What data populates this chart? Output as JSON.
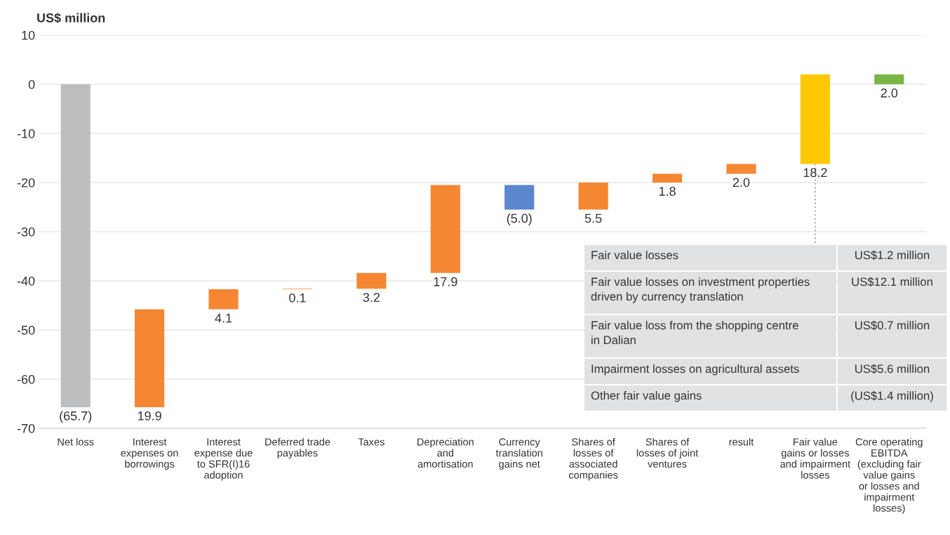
{
  "chart_data": {
    "type": "bar",
    "ylabel": "US$ million",
    "categories": [
      "Net loss",
      "Interest\nexpenses on\nborrowings",
      "Interest\nexpense due\nto SFR(I)16\nadoption",
      "Deferred trade\npayables",
      "Taxes",
      "Depreciation\nand\namortisation",
      "Currency\ntranslation\ngains net",
      "Shares of\nlosses of\nassociated\ncompanies",
      "Shares of\nlosses of joint\nventures",
      "result",
      "Fair value\ngains or losses\nand impairment\nlosses",
      "Core operating\nEBITDA\n(excluding fair\nvalue gains\nor losses and\nimpairment\nlosses)"
    ],
    "base": [
      0,
      -65.7,
      -45.8,
      -41.7,
      -41.6,
      -38.4,
      -20.5,
      -25.5,
      -20.0,
      -18.2,
      -16.2,
      0
    ],
    "values": [
      -65.7,
      19.9,
      4.1,
      0.1,
      3.2,
      17.9,
      -5.0,
      5.5,
      1.8,
      2.0,
      18.2,
      2.0
    ],
    "value_labels": [
      "(65.7)",
      "19.9",
      "4.1",
      "0.1",
      "3.2",
      "17.9",
      "(5.0)",
      "5.5",
      "1.8",
      "2.0",
      "18.2",
      "2.0"
    ],
    "colors": [
      "#bcbec0",
      "#f58733",
      "#f58733",
      "#f58733",
      "#f58733",
      "#f58733",
      "#5a87ce",
      "#f58733",
      "#f58733",
      "#f58733",
      "#ffc800",
      "#7ab648"
    ],
    "ylim": [
      -70,
      10
    ],
    "yticks": [
      -70,
      -60,
      -50,
      -40,
      -30,
      -20,
      -10,
      0,
      10
    ],
    "grid": "y",
    "annotations": [
      "Fair value losses",
      "US$1.2 million",
      "Fair value losses on investment properties\ndriven by currency translation",
      "US$12.1 million",
      "Fair value loss from the shopping centre\nin Dalian",
      "US$0.7 million",
      "Impairment losses on agricultural assets",
      "US$5.6 million",
      "Other fair value gains",
      "(US$1.4 million)"
    ]
  }
}
